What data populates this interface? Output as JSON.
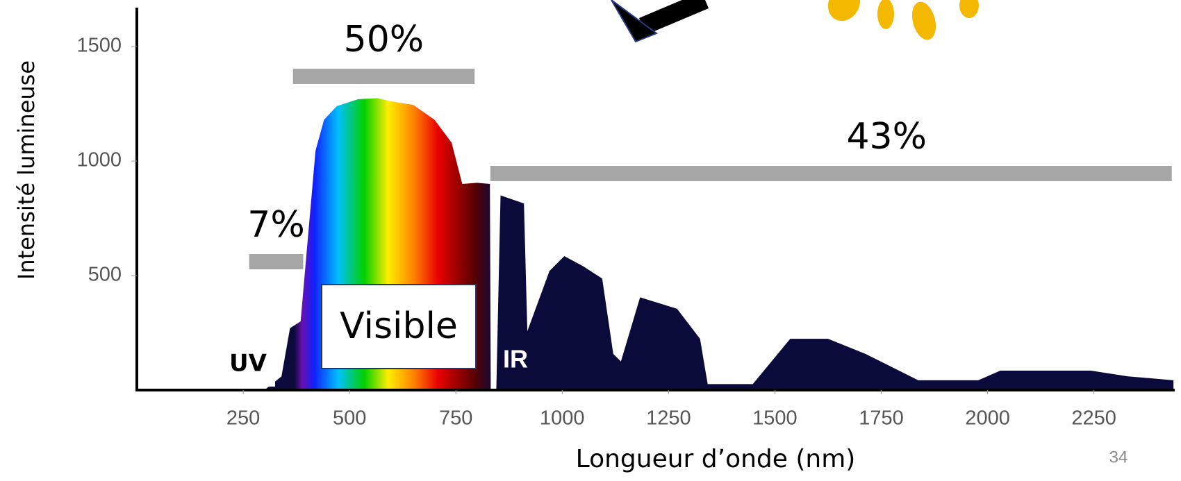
{
  "chart_data": {
    "type": "area",
    "x_label": "Longueur d’onde (nm)",
    "y_label": "Intensité lumineuse",
    "x": [
      300,
      340,
      360,
      385,
      400,
      420,
      440,
      470,
      520,
      565,
      600,
      650,
      700,
      740,
      765,
      800,
      830,
      832,
      845,
      855,
      910,
      918,
      970,
      1005,
      1050,
      1094,
      1120,
      1138,
      1183,
      1270,
      1324,
      1342,
      1448,
      1536,
      1625,
      1713,
      1837,
      1978,
      2030,
      2243,
      2330,
      2437
    ],
    "values": [
      0,
      60,
      270,
      300,
      620,
      1045,
      1180,
      1240,
      1270,
      1275,
      1260,
      1245,
      1180,
      1080,
      900,
      905,
      900,
      0,
      0,
      850,
      815,
      257,
      520,
      585,
      540,
      487,
      158,
      125,
      405,
      355,
      224,
      26,
      26,
      224,
      224,
      158,
      43,
      43,
      85,
      85,
      60,
      43
    ],
    "color": "#0b0b3b",
    "xlim": [
      0,
      2440
    ],
    "ylim": [
      0,
      1670
    ],
    "xticks": [
      250,
      500,
      750,
      1000,
      1250,
      1500,
      1750,
      2000,
      2250
    ],
    "yticks": [
      500,
      1000,
      1500
    ],
    "bands": [
      {
        "label": "7%",
        "range": [
          264,
          391
        ]
      },
      {
        "label": "50%",
        "range": [
          367,
          794
        ]
      },
      {
        "label": "43%",
        "range": [
          831,
          2433
        ]
      }
    ],
    "region_labels": {
      "uv": "UV",
      "visible": "Visible",
      "ir": "IR"
    }
  },
  "slide_number": "34"
}
